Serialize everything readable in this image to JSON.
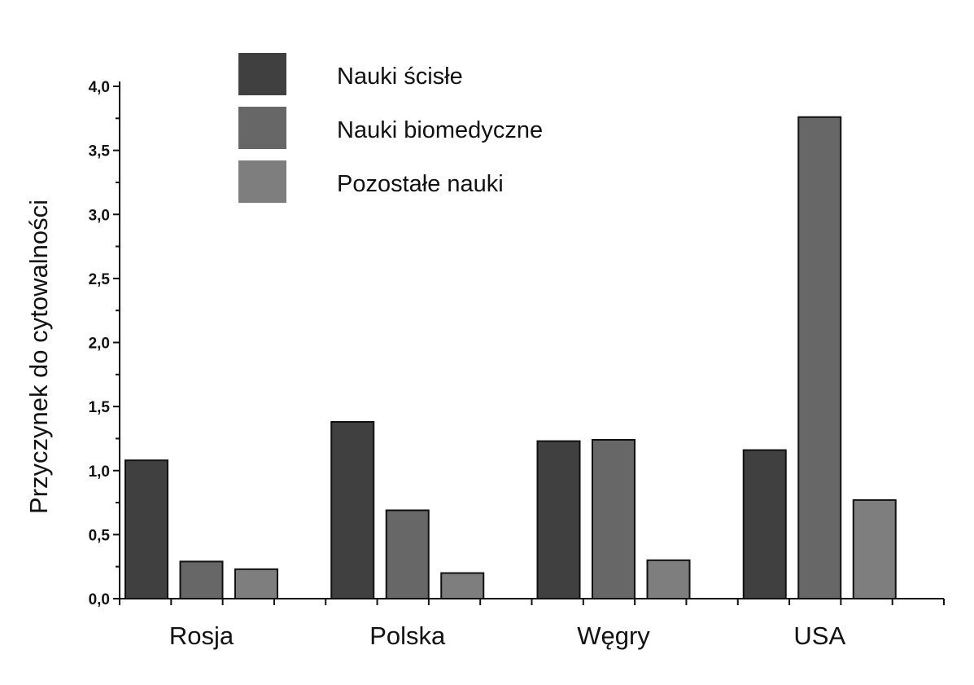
{
  "chart_data": {
    "type": "bar",
    "title": "",
    "xlabel": "",
    "ylabel": "Przyczynek do cytowalności",
    "ylim": [
      0,
      4.0
    ],
    "yticks": [
      "0,0",
      "0,5",
      "1,0",
      "1,5",
      "2,0",
      "2,5",
      "3,0",
      "3,5",
      "4,0"
    ],
    "categories": [
      "Rosja",
      "Polska",
      "Węgry",
      "USA"
    ],
    "series": [
      {
        "name": "Nauki ścisłe",
        "color": "#404040",
        "values": [
          1.08,
          1.38,
          1.23,
          1.16
        ]
      },
      {
        "name": "Nauki biomedyczne",
        "color": "#676767",
        "values": [
          0.29,
          0.69,
          1.24,
          3.76
        ]
      },
      {
        "name": "Pozostałe nauki",
        "color": "#7e7e7e",
        "values": [
          0.23,
          0.2,
          0.3,
          0.77
        ]
      }
    ],
    "legend_position": "top-left",
    "grid": false
  }
}
